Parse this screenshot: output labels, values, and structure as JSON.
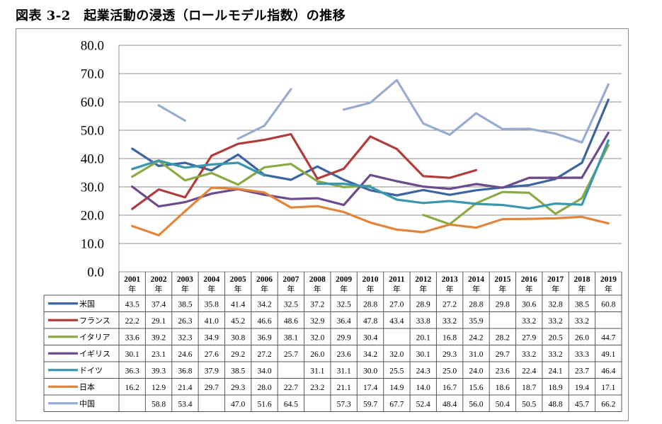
{
  "title": "図表 3-2　起業活動の浸透（ロールモデル指数）の推移",
  "chart_data": {
    "type": "line",
    "title": "図表 3-2　起業活動の浸透（ロールモデル指数）の推移",
    "xlabel": "",
    "ylabel": "",
    "ylim": [
      0,
      80
    ],
    "y_tick_labels": [
      "80.0",
      "70.0",
      "60.0",
      "50.0",
      "40.0",
      "30.0",
      "20.0",
      "10.0",
      "0.0"
    ],
    "x": [
      "2001",
      "2002",
      "2003",
      "2004",
      "2005",
      "2006",
      "2007",
      "2008",
      "2009",
      "2010",
      "2011",
      "2012",
      "2013",
      "2014",
      "2015",
      "2016",
      "2017",
      "2018",
      "2019"
    ],
    "x_suffix": "年",
    "grid": true,
    "legend": "data-table-left",
    "series": [
      {
        "name": "米国",
        "color": "#3b65a1",
        "values": [
          43.5,
          37.4,
          38.5,
          35.8,
          41.4,
          34.2,
          32.5,
          37.2,
          32.5,
          28.8,
          27.0,
          28.9,
          27.2,
          28.8,
          29.8,
          30.6,
          32.8,
          38.5,
          60.8
        ]
      },
      {
        "name": "フランス",
        "color": "#b03c3a",
        "values": [
          22.2,
          29.1,
          26.3,
          41.0,
          45.2,
          46.6,
          48.6,
          32.9,
          36.4,
          47.8,
          43.4,
          33.8,
          33.2,
          35.9,
          null,
          33.2,
          33.2,
          33.2,
          null
        ]
      },
      {
        "name": "イタリア",
        "color": "#8aaa46",
        "values": [
          33.6,
          39.2,
          32.3,
          34.9,
          30.8,
          36.9,
          38.1,
          32.0,
          29.9,
          30.4,
          null,
          20.1,
          16.8,
          24.2,
          28.2,
          27.9,
          20.5,
          26.0,
          44.7
        ]
      },
      {
        "name": "イギリス",
        "color": "#6c4b8c",
        "values": [
          30.1,
          23.1,
          24.6,
          27.6,
          29.2,
          27.2,
          25.7,
          26.0,
          23.6,
          34.2,
          32.0,
          30.1,
          29.3,
          31.0,
          29.7,
          33.2,
          33.2,
          33.3,
          49.1
        ]
      },
      {
        "name": "ドイツ",
        "color": "#3a97ad",
        "values": [
          36.3,
          39.3,
          36.8,
          37.9,
          38.5,
          34.0,
          null,
          31.1,
          31.1,
          30.0,
          25.5,
          24.3,
          25.0,
          24.0,
          23.6,
          22.4,
          24.1,
          23.7,
          46.4
        ]
      },
      {
        "name": "日本",
        "color": "#e2843a",
        "values": [
          16.2,
          12.9,
          21.4,
          29.7,
          29.3,
          28.0,
          22.7,
          23.2,
          21.1,
          17.4,
          14.9,
          14.0,
          16.7,
          15.6,
          18.6,
          18.7,
          18.9,
          19.4,
          17.1
        ]
      },
      {
        "name": "中国",
        "color": "#97acd0",
        "values": [
          null,
          58.8,
          53.4,
          null,
          47.0,
          51.6,
          64.5,
          null,
          57.3,
          59.7,
          67.7,
          52.4,
          48.4,
          56.0,
          50.4,
          50.5,
          48.8,
          45.7,
          66.2
        ]
      }
    ]
  }
}
